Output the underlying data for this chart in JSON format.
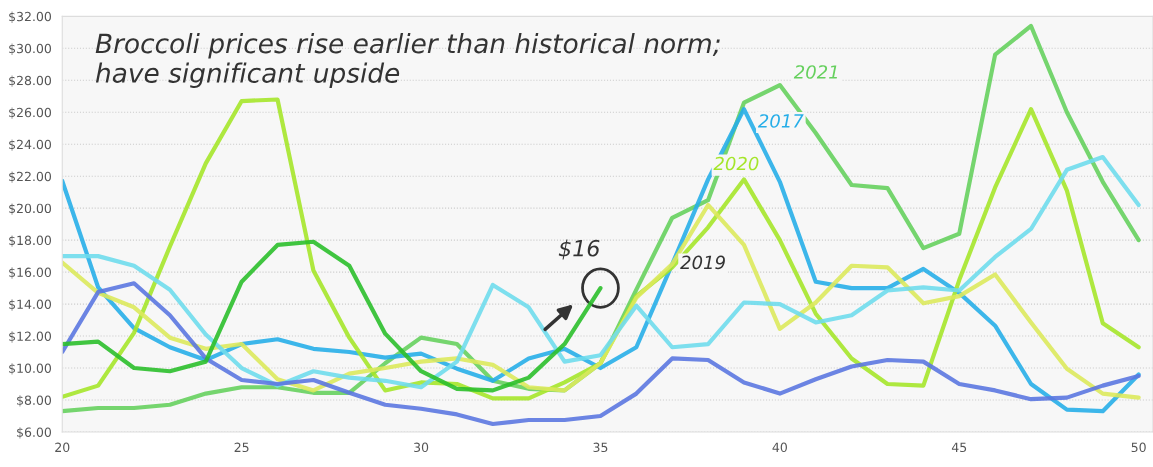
{
  "chart_data": {
    "type": "line",
    "title": "Broccoli prices rise earlier than historical norm;\nhave significant upside",
    "x": [
      20,
      21,
      22,
      23,
      24,
      25,
      26,
      27,
      28,
      29,
      30,
      31,
      32,
      33,
      34,
      35,
      36,
      37,
      38,
      39,
      40,
      41,
      42,
      43,
      44,
      45,
      46,
      47,
      48,
      49,
      50
    ],
    "series": [
      {
        "name": "2021",
        "color": "#66d05e",
        "values": [
          7.3,
          7.5,
          7.5,
          7.7,
          8.4,
          8.8,
          8.8,
          8.45,
          8.45,
          10.3,
          11.9,
          11.5,
          9.2,
          8.7,
          8.6,
          10.3,
          14.9,
          19.4,
          20.5,
          26.6,
          27.7,
          24.7,
          21.45,
          21.25,
          17.5,
          18.4,
          29.6,
          31.4,
          26.0,
          21.65,
          18.0
        ]
      },
      {
        "name": "2017",
        "color": "#27aee8",
        "values": [
          21.7,
          15.05,
          12.5,
          11.3,
          10.5,
          11.5,
          11.8,
          11.2,
          11.0,
          10.65,
          10.9,
          9.96,
          9.2,
          10.6,
          11.2,
          10.0,
          11.3,
          16.5,
          21.8,
          26.2,
          21.65,
          15.4,
          15.0,
          15.0,
          16.2,
          14.7,
          12.65,
          9.0,
          7.4,
          7.3,
          9.6
        ]
      },
      {
        "name": "2020",
        "color": "#a5e52a",
        "values": [
          8.2,
          8.9,
          12.2,
          17.6,
          22.8,
          26.7,
          26.8,
          16.1,
          11.9,
          8.6,
          9.1,
          9.0,
          8.1,
          8.1,
          9.1,
          10.3,
          14.5,
          16.3,
          18.8,
          21.8,
          18.0,
          13.4,
          10.6,
          9.0,
          8.9,
          15.5,
          21.3,
          26.2,
          21.1,
          12.8,
          11.3
        ]
      },
      {
        "name": "2019",
        "color": "#dbe95c",
        "values": [
          16.6,
          14.7,
          13.8,
          11.9,
          11.2,
          11.5,
          9.3,
          8.6,
          9.65,
          10.0,
          10.4,
          10.6,
          10.2,
          8.8,
          8.6,
          10.3,
          14.4,
          16.5,
          20.2,
          17.7,
          12.45,
          14.1,
          16.4,
          16.3,
          14.05,
          14.5,
          15.85,
          12.85,
          9.95,
          8.4,
          8.15
        ]
      },
      {
        "color": "#6fdcec",
        "values": [
          17.0,
          17.0,
          16.4,
          14.9,
          12.1,
          10.0,
          8.9,
          9.8,
          9.4,
          9.2,
          8.8,
          10.4,
          15.2,
          13.8,
          10.4,
          10.8,
          13.9,
          11.3,
          11.5,
          14.1,
          14.0,
          12.85,
          13.3,
          14.85,
          15.05,
          14.85,
          16.95,
          18.7,
          22.4,
          23.2,
          20.2
        ]
      },
      {
        "color": "#5b77e0",
        "values": [
          11.0,
          14.75,
          15.3,
          13.3,
          10.6,
          9.25,
          9.0,
          9.25,
          8.45,
          7.7,
          7.45,
          7.1,
          6.5,
          6.75,
          6.75,
          7.0,
          8.4,
          10.6,
          10.5,
          9.1,
          8.4,
          9.3,
          10.1,
          10.5,
          10.4,
          9.0,
          8.6,
          8.05,
          8.15,
          8.9,
          9.5
        ]
      },
      {
        "color": "#2bbf2b",
        "values": [
          11.5,
          11.65,
          10.0,
          9.8,
          10.4,
          15.4,
          17.7,
          17.9,
          16.4,
          12.15,
          9.8,
          8.7,
          8.6,
          9.4,
          11.5,
          15.0,
          null,
          null,
          null,
          null,
          null,
          null,
          null,
          null,
          null,
          null,
          null,
          null,
          null,
          null,
          null
        ]
      }
    ],
    "annotations": [
      {
        "text": "$16",
        "x": 35,
        "y": 15
      }
    ],
    "xlim": [
      20,
      50.4
    ],
    "xticks": [
      20,
      25,
      30,
      35,
      40,
      45,
      50
    ],
    "ylim": [
      6,
      32
    ],
    "yticks": [
      {
        "value": 6,
        "label": "$6.00"
      },
      {
        "value": 8,
        "label": "$8.00"
      },
      {
        "value": 10,
        "label": "$10.00"
      },
      {
        "value": 12,
        "label": "$12.00"
      },
      {
        "value": 14,
        "label": "$14.00"
      },
      {
        "value": 16,
        "label": "$16.00"
      },
      {
        "value": 18,
        "label": "$18.00"
      },
      {
        "value": 20,
        "label": "$20.00"
      },
      {
        "value": 22,
        "label": "$22.00"
      },
      {
        "value": 24,
        "label": "$24.00"
      },
      {
        "value": 26,
        "label": "$26.00"
      },
      {
        "value": 28,
        "label": "$28.00"
      },
      {
        "value": 30,
        "label": "$30.00"
      },
      {
        "value": 32,
        "label": "$32.00"
      }
    ],
    "grid": "y",
    "legend": false,
    "marker": "none",
    "line_style": "solid"
  }
}
